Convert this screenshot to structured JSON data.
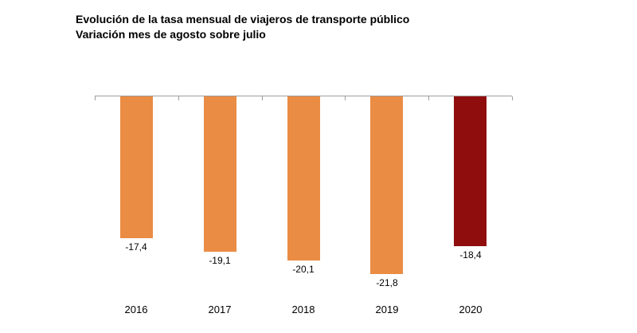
{
  "title": {
    "line1": "Evolución de la tasa mensual de viajeros de transporte público",
    "line2": "Variación mes de agosto sobre julio"
  },
  "colors": {
    "bar_default": "#EA8C44",
    "bar_highlight": "#8F0E0D",
    "axis": "#9E9E9E",
    "text": "#000000"
  },
  "chart_data": {
    "type": "bar",
    "title": "Evolución de la tasa mensual de viajeros de transporte público",
    "subtitle": "Variación mes de agosto sobre julio",
    "categories": [
      "2016",
      "2017",
      "2018",
      "2019",
      "2020"
    ],
    "values": [
      -17.4,
      -19.1,
      -20.1,
      -21.8,
      -18.4
    ],
    "value_labels": [
      "-17,4",
      "-19,1",
      "-20,1",
      "-21,8",
      "-18,4"
    ],
    "bar_colors": [
      "#EA8C44",
      "#EA8C44",
      "#EA8C44",
      "#EA8C44",
      "#8F0E0D"
    ],
    "xlabel": "",
    "ylabel": "",
    "ylim": [
      -25,
      0
    ],
    "baseline": 0,
    "grid": false,
    "legend": false,
    "orientation": "vertical",
    "value_label_position": "below-bar",
    "highlighted_category": "2020"
  }
}
